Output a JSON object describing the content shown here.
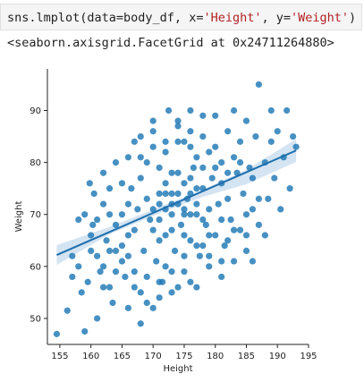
{
  "cell": {
    "code_parts": [
      {
        "text": "sns.lmplot(data=body_df, x=",
        "cls": ""
      },
      {
        "text": "'Height'",
        "cls": "tok-str"
      },
      {
        "text": ", y=",
        "cls": ""
      },
      {
        "text": "'Weight'",
        "cls": "tok-str"
      },
      {
        "text": ")",
        "cls": ""
      }
    ],
    "output": "<seaborn.axisgrid.FacetGrid at 0x24711264880>"
  },
  "colors": {
    "points": "#1f77b4",
    "line": "#1f6fad",
    "ci_band": "#c6dbef"
  },
  "chart_data": {
    "type": "scatter",
    "xlabel": "Height",
    "ylabel": "Weight",
    "xlim": [
      153,
      195
    ],
    "ylim": [
      45,
      98
    ],
    "xticks": [
      155,
      160,
      165,
      170,
      175,
      180,
      185,
      190,
      195
    ],
    "yticks": [
      50,
      60,
      70,
      80,
      90
    ],
    "regression": {
      "x": [
        154.5,
        193
      ],
      "y": [
        62.2,
        82.3
      ]
    },
    "ci": {
      "x": [
        154.5,
        163,
        172,
        178,
        185,
        193
      ],
      "lower": [
        60.3,
        66.2,
        70.7,
        73.4,
        75.8,
        80.1
      ],
      "upper": [
        64.1,
        67.6,
        71.9,
        74.8,
        78.6,
        84.5
      ]
    },
    "points": [
      [
        154.5,
        47
      ],
      [
        156.2,
        51.5
      ],
      [
        157,
        62
      ],
      [
        158.5,
        55
      ],
      [
        159,
        47.5
      ],
      [
        159.5,
        57
      ],
      [
        159.8,
        76
      ],
      [
        160.5,
        74
      ],
      [
        160.3,
        68
      ],
      [
        161,
        50
      ],
      [
        161.5,
        59
      ],
      [
        162,
        72
      ],
      [
        162.5,
        65
      ],
      [
        162,
        78
      ],
      [
        161,
        62
      ],
      [
        160,
        66
      ],
      [
        158,
        60
      ],
      [
        163,
        56
      ],
      [
        163.5,
        53
      ],
      [
        164,
        63
      ],
      [
        164,
        80
      ],
      [
        165,
        70
      ],
      [
        165.5,
        58
      ],
      [
        166,
        66
      ],
      [
        166.5,
        75
      ],
      [
        167,
        84
      ],
      [
        167,
        59
      ],
      [
        167.5,
        71
      ],
      [
        168,
        55
      ],
      [
        168.5,
        63
      ],
      [
        169,
        80
      ],
      [
        169.5,
        69
      ],
      [
        170,
        52
      ],
      [
        170,
        86
      ],
      [
        170.5,
        61
      ],
      [
        171,
        74
      ],
      [
        171.5,
        57
      ],
      [
        172,
        82
      ],
      [
        172,
        66
      ],
      [
        172.5,
        90
      ],
      [
        173,
        55
      ],
      [
        173,
        72
      ],
      [
        173.5,
        63
      ],
      [
        174,
        78
      ],
      [
        174,
        88
      ],
      [
        174.5,
        68
      ],
      [
        175,
        59
      ],
      [
        175,
        84
      ],
      [
        175.5,
        73
      ],
      [
        176,
        65
      ],
      [
        176,
        90
      ],
      [
        176.5,
        79
      ],
      [
        177,
        56
      ],
      [
        177,
        70
      ],
      [
        177.5,
        62
      ],
      [
        178,
        85
      ],
      [
        178,
        75
      ],
      [
        178.5,
        68
      ],
      [
        179,
        82
      ],
      [
        179,
        60
      ],
      [
        179.5,
        77
      ],
      [
        180,
        66
      ],
      [
        180,
        89
      ],
      [
        180.5,
        72
      ],
      [
        181,
        80
      ],
      [
        181,
        58
      ],
      [
        181.5,
        64
      ],
      [
        182,
        86
      ],
      [
        182,
        73
      ],
      [
        182.5,
        69
      ],
      [
        183,
        90
      ],
      [
        183,
        61
      ],
      [
        183.5,
        78
      ],
      [
        184,
        67
      ],
      [
        184,
        84
      ],
      [
        184.5,
        74
      ],
      [
        185,
        88
      ],
      [
        185,
        63
      ],
      [
        185.5,
        79
      ],
      [
        186,
        71
      ],
      [
        186.5,
        85
      ],
      [
        187,
        95
      ],
      [
        187,
        68
      ],
      [
        188,
        80
      ],
      [
        188.5,
        73
      ],
      [
        189,
        90
      ],
      [
        189.5,
        77
      ],
      [
        190,
        86
      ],
      [
        190.5,
        71
      ],
      [
        191,
        81
      ],
      [
        191.5,
        90
      ],
      [
        192,
        75
      ],
      [
        192.5,
        85
      ],
      [
        193,
        83
      ],
      [
        166,
        52
      ],
      [
        168,
        49
      ],
      [
        171,
        54
      ],
      [
        174,
        56
      ],
      [
        176,
        57
      ],
      [
        163,
        70
      ],
      [
        165,
        76
      ],
      [
        168,
        77
      ],
      [
        170,
        67
      ],
      [
        172,
        60
      ],
      [
        175,
        66
      ],
      [
        177,
        81
      ],
      [
        179,
        71
      ],
      [
        181,
        76
      ],
      [
        164,
        68
      ],
      [
        166,
        62
      ],
      [
        169,
        73
      ],
      [
        171,
        79
      ],
      [
        173,
        67
      ],
      [
        176,
        74
      ],
      [
        178,
        64
      ],
      [
        180,
        79
      ],
      [
        182,
        65
      ],
      [
        183,
        81
      ],
      [
        185,
        70
      ],
      [
        186,
        77
      ],
      [
        162,
        60
      ],
      [
        165,
        64
      ],
      [
        167,
        67
      ],
      [
        169,
        58
      ],
      [
        171,
        65
      ],
      [
        173,
        78
      ],
      [
        175,
        70
      ],
      [
        177,
        75
      ],
      [
        179,
        66
      ],
      [
        181,
        69
      ],
      [
        163,
        75
      ],
      [
        166,
        81
      ],
      [
        168,
        85
      ],
      [
        170,
        83
      ],
      [
        172,
        76
      ],
      [
        174,
        84
      ],
      [
        176,
        83
      ],
      [
        178,
        79
      ],
      [
        180,
        83
      ],
      [
        182,
        78
      ],
      [
        184,
        80
      ],
      [
        159,
        70
      ],
      [
        161,
        69
      ],
      [
        163,
        63
      ],
      [
        165,
        61
      ],
      [
        167,
        56
      ],
      [
        169,
        53
      ],
      [
        171,
        57
      ],
      [
        173,
        59
      ],
      [
        175,
        62
      ],
      [
        177,
        64
      ],
      [
        179,
        62
      ],
      [
        181,
        61
      ],
      [
        183,
        67
      ],
      [
        185,
        66
      ],
      [
        187,
        73
      ],
      [
        189,
        84
      ],
      [
        186,
        61
      ],
      [
        188,
        66
      ],
      [
        178,
        89
      ],
      [
        176,
        86
      ],
      [
        174,
        87
      ],
      [
        172,
        84
      ],
      [
        170,
        88
      ],
      [
        168,
        81
      ],
      [
        166,
        72
      ],
      [
        164,
        59
      ],
      [
        162,
        56
      ],
      [
        160,
        63
      ],
      [
        158,
        69
      ],
      [
        157,
        58
      ],
      [
        170,
        71
      ],
      [
        171,
        69
      ],
      [
        172,
        71
      ],
      [
        173,
        70
      ],
      [
        174,
        72
      ],
      [
        175,
        71
      ],
      [
        176,
        70
      ],
      [
        177,
        72
      ],
      [
        178,
        69
      ],
      [
        174,
        74
      ],
      [
        173,
        74
      ],
      [
        175,
        76
      ],
      [
        176,
        77
      ],
      [
        172,
        74
      ],
      [
        171,
        72
      ]
    ]
  }
}
